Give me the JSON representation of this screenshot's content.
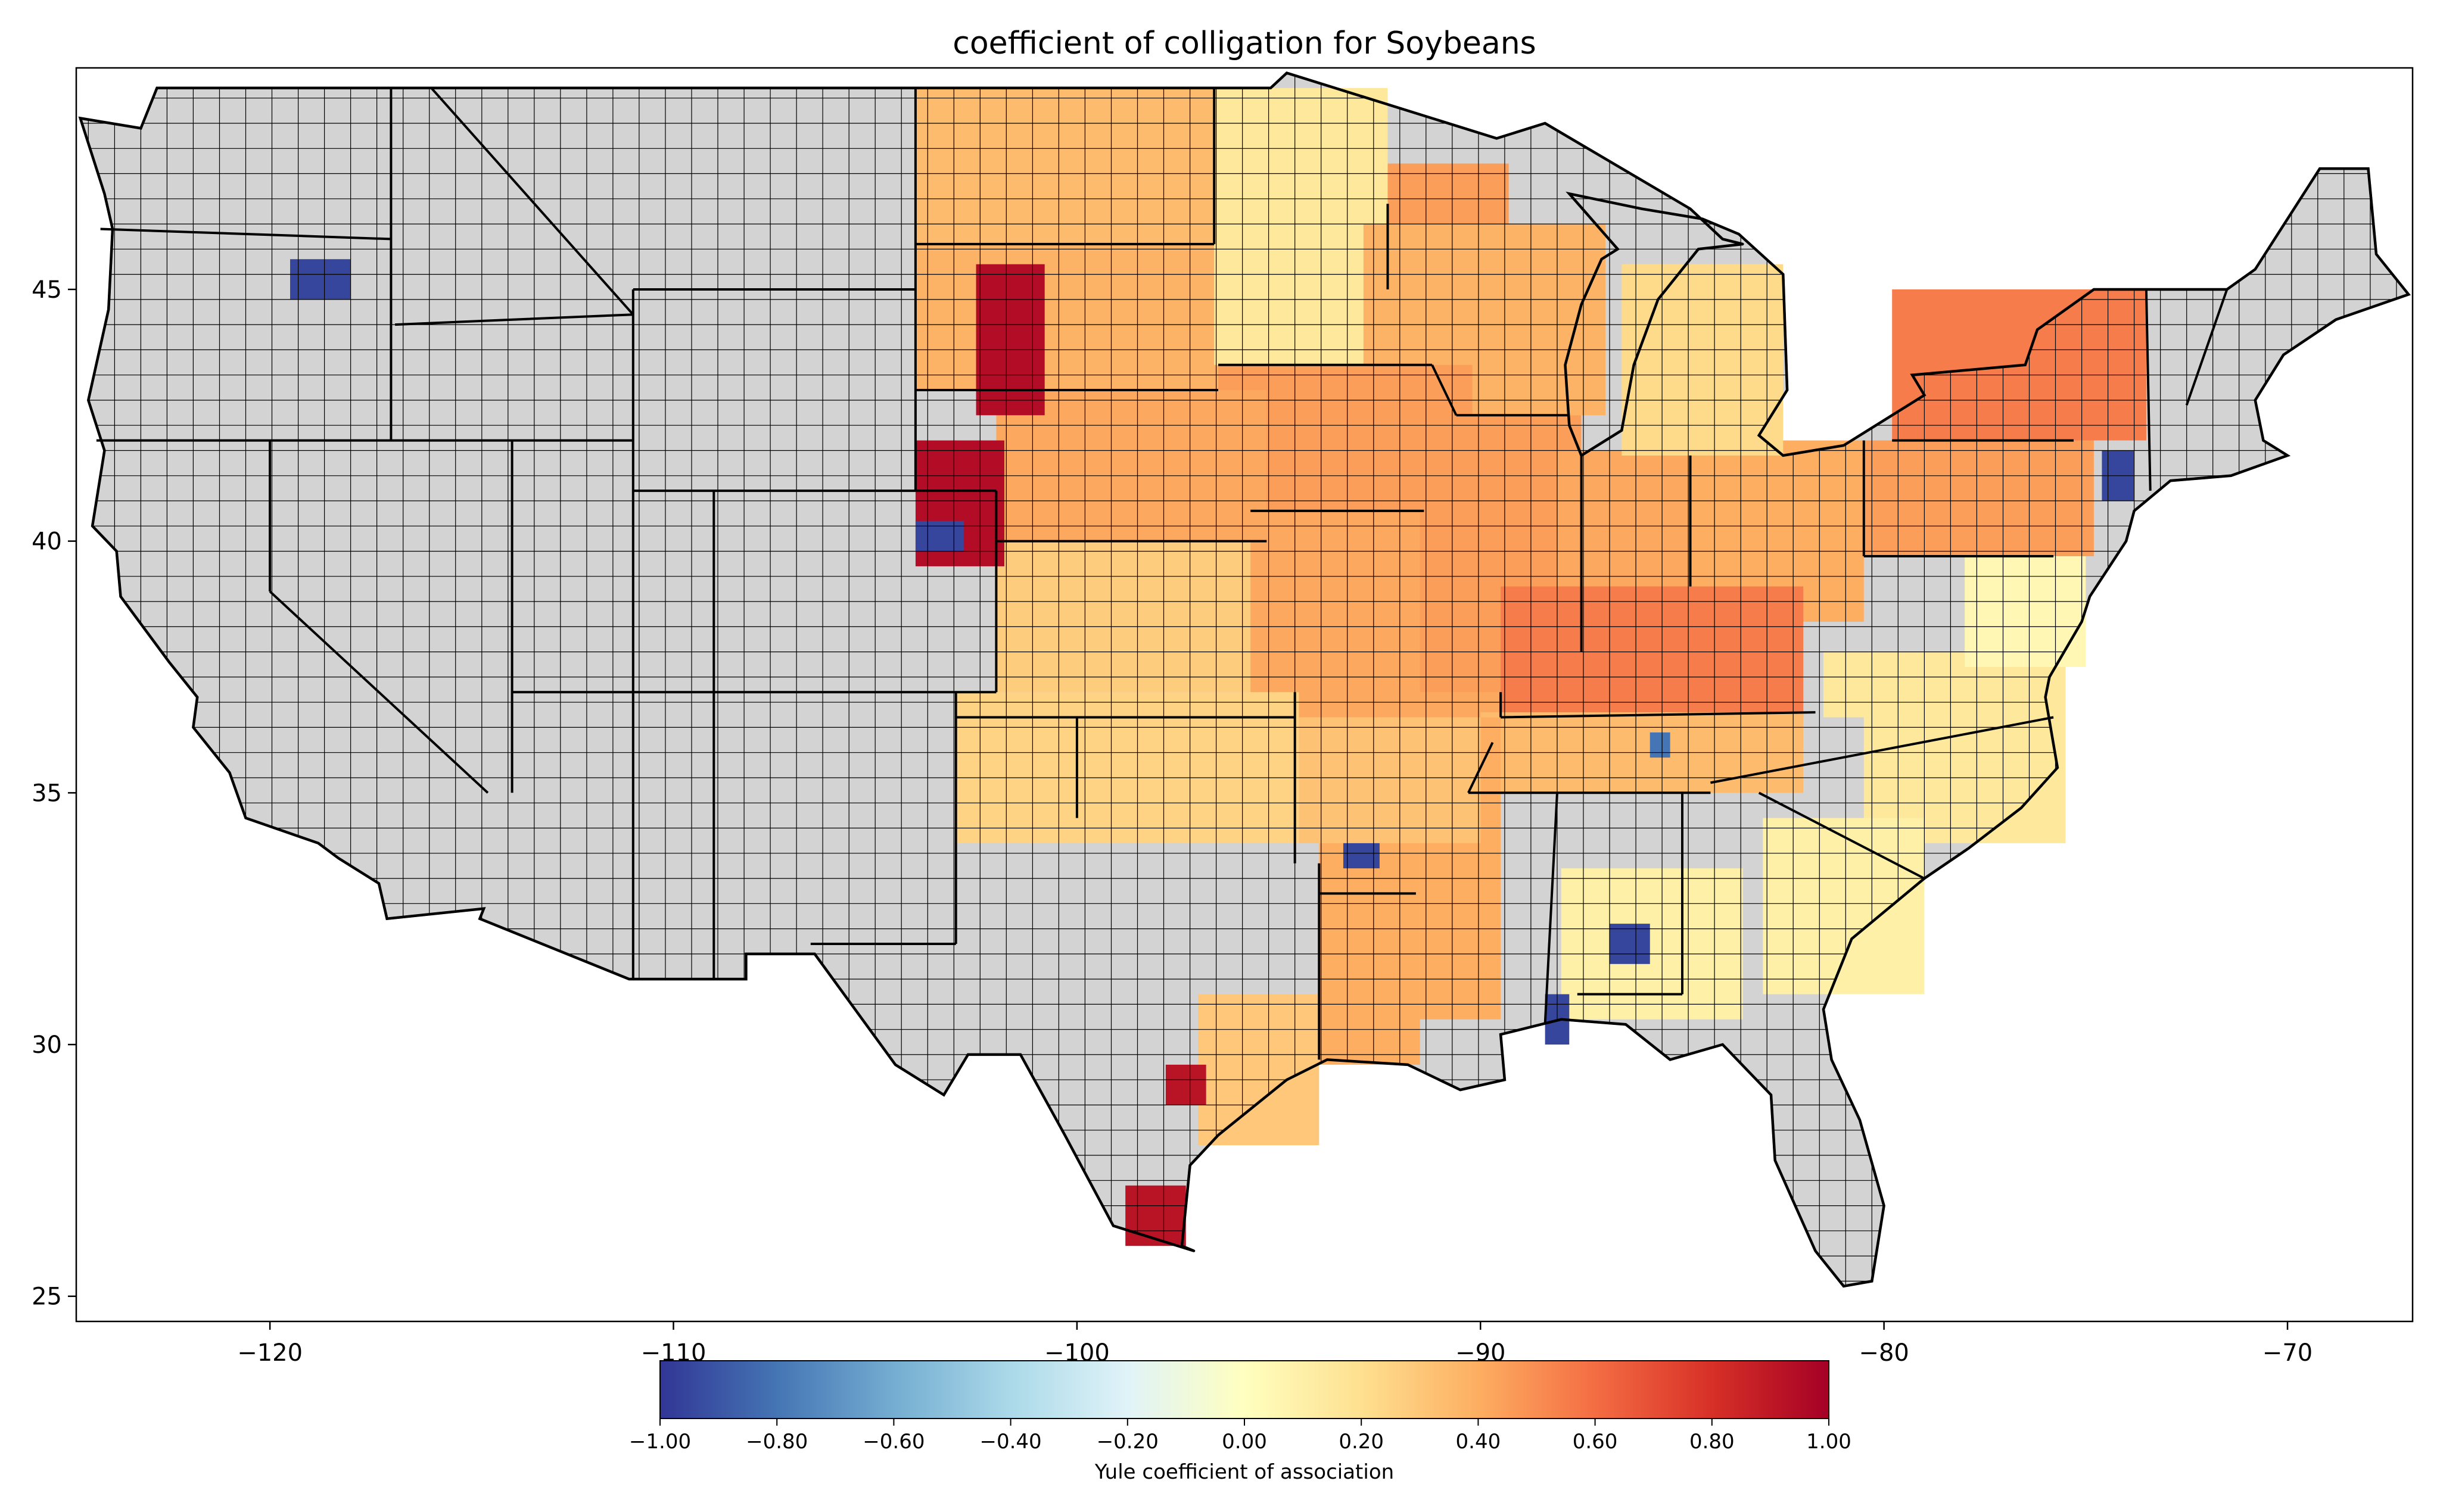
{
  "title": "coefficient of colligation for Soybeans",
  "colors": {
    "no_data": "#d3d3d3",
    "border": "#000000",
    "colormap": [
      "#313695",
      "#4575b4",
      "#74add1",
      "#abd9e9",
      "#e0f3f8",
      "#ffffbf",
      "#fee090",
      "#fdae61",
      "#f46d43",
      "#d73027",
      "#a50026"
    ]
  },
  "map": {
    "projection": "PlateCarree",
    "x_ticks": [
      "−120",
      "−110",
      "−100",
      "−90",
      "−80",
      "−70"
    ],
    "y_ticks": [
      "25",
      "30",
      "35",
      "40",
      "45"
    ]
  },
  "colorbar": {
    "label": "Yule coefficient of association",
    "ticks": [
      "−1.00",
      "−0.80",
      "−0.60",
      "−0.40",
      "−0.20",
      "0.00",
      "0.20",
      "0.40",
      "0.60",
      "0.80",
      "1.00"
    ],
    "range": [
      -1.0,
      1.0
    ]
  },
  "chart_data": {
    "type": "choropleth",
    "variable": "Yule coefficient of association",
    "xlim": [
      -124.8,
      -66.9
    ],
    "ylim": [
      24.5,
      49.4
    ],
    "colored_regions": [
      {
        "region": "Northern Plains (ND, SD, NE, KS, MN)",
        "value": 0.3
      },
      {
        "region": "Corn Belt (IA, IL, IN, OH, MO)",
        "value": 0.45
      },
      {
        "region": "Kentucky / Tennessee",
        "value": 0.5
      },
      {
        "region": "Mid-Atlantic / Carolinas",
        "value": 0.15
      },
      {
        "region": "Lower Mississippi Valley",
        "value": 0.4
      },
      {
        "region": "Western Nebraska / Kansas panhandle",
        "value": 0.95
      },
      {
        "region": "Southern Texas coast",
        "value": 0.9
      },
      {
        "region": "Eastern Oregon",
        "value": -0.95
      },
      {
        "region": "Scattered Southeast counties",
        "value": -0.95
      }
    ]
  }
}
